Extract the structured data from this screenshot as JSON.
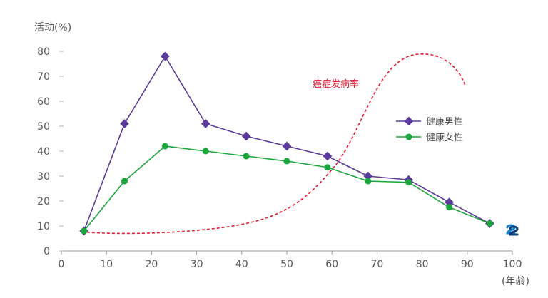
{
  "chart_data": {
    "type": "line",
    "ylabel": "活动(%)",
    "xlabel": "(年龄)",
    "xlim": [
      0,
      100
    ],
    "ylim": [
      0,
      85
    ],
    "x_ticks": [
      0,
      10,
      20,
      30,
      40,
      50,
      60,
      70,
      80,
      90,
      100
    ],
    "y_ticks": [
      0,
      10,
      20,
      30,
      40,
      50,
      60,
      70,
      80
    ],
    "series": [
      {
        "name": "健康男性",
        "color": "#5b3a9a",
        "marker": "diamond",
        "points": [
          [
            5,
            8
          ],
          [
            14,
            51
          ],
          [
            23,
            78
          ],
          [
            32,
            51
          ],
          [
            41,
            46
          ],
          [
            50,
            42
          ],
          [
            59,
            38
          ],
          [
            68,
            30
          ],
          [
            77,
            28.5
          ],
          [
            86,
            19.5
          ],
          [
            95,
            11
          ]
        ]
      },
      {
        "name": "健康女性",
        "color": "#1aa63a",
        "marker": "circle",
        "points": [
          [
            5,
            8
          ],
          [
            14,
            28
          ],
          [
            23,
            42
          ],
          [
            32,
            40
          ],
          [
            41,
            38
          ],
          [
            50,
            36
          ],
          [
            59,
            33.5
          ],
          [
            68,
            28
          ],
          [
            77,
            27.5
          ],
          [
            86,
            17.5
          ],
          [
            95,
            11
          ]
        ]
      }
    ],
    "annotation": {
      "label": "癌症发病率",
      "color": "#e5172b",
      "style": "dashed"
    },
    "legend_position": "right"
  },
  "logo_icon": "logo-icon"
}
